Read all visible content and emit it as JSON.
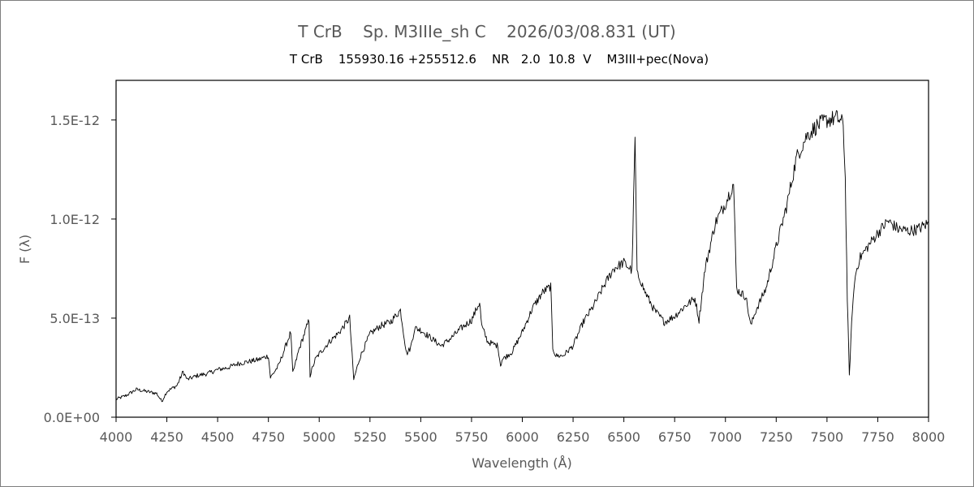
{
  "header": {
    "title": "T CrB    Sp. M3IIIe_sh C    2026/03/08.831 (UT)",
    "subtitle": "T CrB    155930.16 +255512.6    NR   2.0  10.8  V    M3III+pec(Nova)"
  },
  "chart_data": {
    "type": "line",
    "title": "T CrB    Sp. M3IIIe_sh C    2026/03/08.831 (UT)",
    "subtitle": "T CrB    155930.16 +255512.6    NR   2.0  10.8  V    M3III+pec(Nova)",
    "xlabel": "Wavelength (Å)",
    "ylabel": "F (λ)",
    "xlim": [
      4000,
      8000
    ],
    "ylim": [
      0,
      1.7e-12
    ],
    "x_ticks": [
      4000,
      4250,
      4500,
      4750,
      5000,
      5250,
      5500,
      5750,
      6000,
      6250,
      6500,
      6750,
      7000,
      7250,
      7500,
      7750,
      8000
    ],
    "x_tick_labels": [
      "4000",
      "4250",
      "4500",
      "4750",
      "5000",
      "5250",
      "5500",
      "5750",
      "6000",
      "6250",
      "6500",
      "6750",
      "7000",
      "7250",
      "7500",
      "7750",
      "8000"
    ],
    "y_ticks": [
      0,
      5e-13,
      1e-12,
      1.5e-12
    ],
    "y_tick_labels": [
      "0.0E+00",
      "5.0E-13",
      "1.0E-12",
      "1.5E-12"
    ],
    "grid": false,
    "legend": "none",
    "line_color": "#000000",
    "series": [
      {
        "x": [
          4000,
          4050,
          4100,
          4150,
          4200,
          4225,
          4250,
          4300,
          4330,
          4350,
          4400,
          4450,
          4500,
          4550,
          4600,
          4650,
          4700,
          4750,
          4760,
          4800,
          4860,
          4870,
          4900,
          4950,
          4955,
          4980,
          5000,
          5050,
          5100,
          5150,
          5170,
          5200,
          5250,
          5300,
          5350,
          5400,
          5430,
          5450,
          5470,
          5500,
          5550,
          5600,
          5650,
          5700,
          5750,
          5790,
          5800,
          5830,
          5880,
          5893,
          5900,
          5950,
          6000,
          6050,
          6100,
          6140,
          6150,
          6165,
          6200,
          6250,
          6300,
          6350,
          6400,
          6450,
          6500,
          6540,
          6555,
          6565,
          6580,
          6600,
          6650,
          6700,
          6750,
          6800,
          6850,
          6870,
          6900,
          6950,
          7000,
          7040,
          7055,
          7070,
          7100,
          7125,
          7150,
          7200,
          7250,
          7300,
          7350,
          7400,
          7450,
          7500,
          7550,
          7580,
          7590,
          7600,
          7610,
          7625,
          7640,
          7660,
          7700,
          7750,
          7800,
          7850,
          7900,
          7950,
          8000
        ],
        "y": [
          9e-14,
          1.1e-13,
          1.4e-13,
          1.3e-13,
          1.2e-13,
          8e-14,
          1.3e-13,
          1.6e-13,
          2.3e-13,
          1.9e-13,
          2.1e-13,
          2.2e-13,
          2.4e-13,
          2.5e-13,
          2.7e-13,
          2.8e-13,
          2.9e-13,
          3.1e-13,
          2e-13,
          2.6e-13,
          4.3e-13,
          2.2e-13,
          3.4e-13,
          4.9e-13,
          2.1e-13,
          2.9e-13,
          3.2e-13,
          3.8e-13,
          4.3e-13,
          5e-13,
          1.9e-13,
          3e-13,
          4.2e-13,
          4.6e-13,
          4.8e-13,
          5.4e-13,
          3.2e-13,
          3.5e-13,
          4.5e-13,
          4.4e-13,
          4e-13,
          3.6e-13,
          4e-13,
          4.5e-13,
          4.9e-13,
          5.8e-13,
          4.6e-13,
          3.8e-13,
          3.6e-13,
          2.6e-13,
          2.9e-13,
          3.3e-13,
          4.3e-13,
          5.5e-13,
          6.3e-13,
          6.6e-13,
          3.5e-13,
          3.1e-13,
          3.1e-13,
          3.6e-13,
          4.8e-13,
          5.6e-13,
          6.6e-13,
          7.5e-13,
          7.8e-13,
          7.4e-13,
          1.41e-12,
          7.2e-13,
          7e-13,
          6.4e-13,
          5.4e-13,
          4.8e-13,
          5.1e-13,
          5.6e-13,
          6e-13,
          4.9e-13,
          7.5e-13,
          9.8e-13,
          1.08e-12,
          1.18e-12,
          6.5e-13,
          6.3e-13,
          6.1e-13,
          4.6e-13,
          5.4e-13,
          6.5e-13,
          8.6e-13,
          1.06e-12,
          1.31e-12,
          1.42e-12,
          1.47e-12,
          1.5e-12,
          1.51e-12,
          1.48e-12,
          1.2e-12,
          6e-13,
          2.1e-13,
          5.5e-13,
          7.2e-13,
          8e-13,
          8.6e-13,
          9.3e-13,
          9.9e-13,
          9.5e-13,
          9.4e-13,
          9.5e-13,
          9.8e-13
        ]
      }
    ]
  }
}
